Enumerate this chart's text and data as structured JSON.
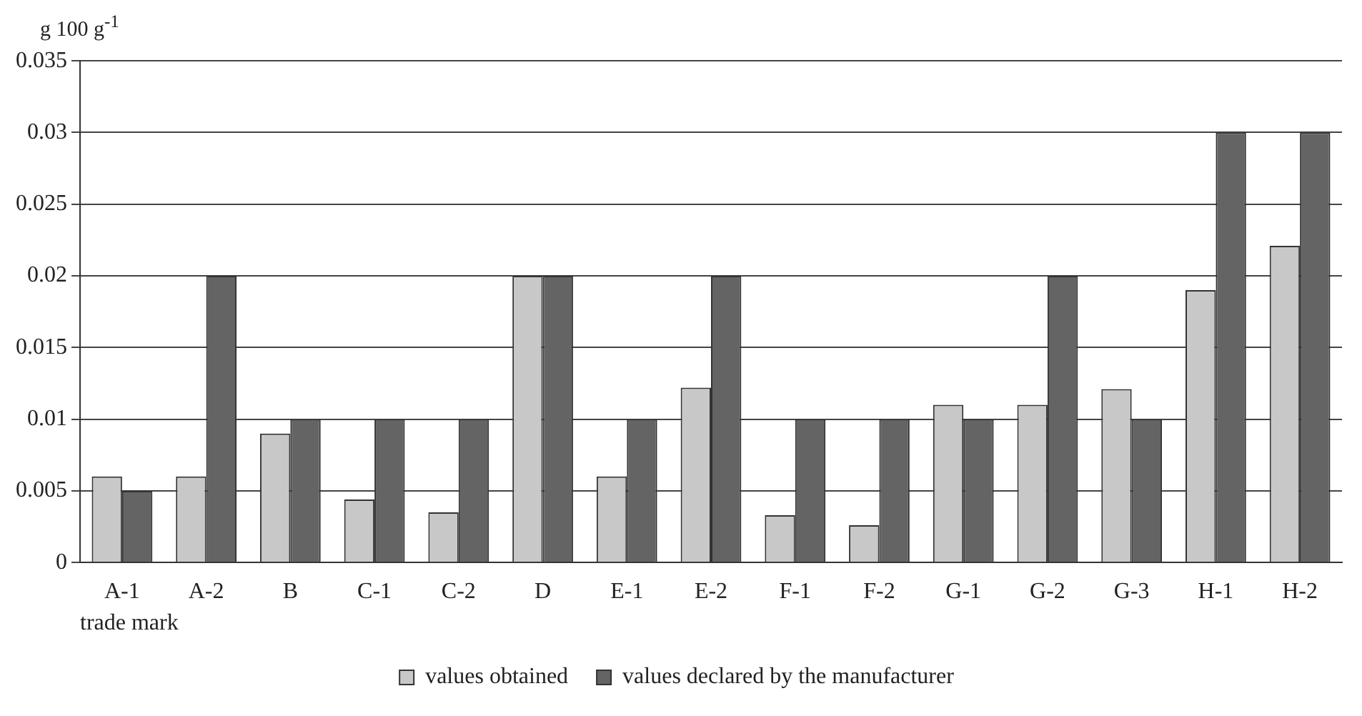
{
  "chart_data": {
    "type": "bar",
    "ylabel": "g 100 g$^{-1}$",
    "xlabel": "trade mark",
    "categories": [
      "A-1",
      "A-2",
      "B",
      "C-1",
      "C-2",
      "D",
      "E-1",
      "E-2",
      "F-1",
      "F-2",
      "G-1",
      "G-2",
      "G-3",
      "H-1",
      "H-2"
    ],
    "series": [
      {
        "name": "values obtained",
        "color": "#c8c8c8",
        "values": [
          0.006,
          0.006,
          0.009,
          0.0044,
          0.0035,
          0.02,
          0.006,
          0.0122,
          0.0033,
          0.0026,
          0.011,
          0.011,
          0.0121,
          0.019,
          0.0221
        ]
      },
      {
        "name": "values declared by the manufacturer",
        "color": "#646464",
        "values": [
          0.005,
          0.02,
          0.01,
          0.01,
          0.01,
          0.02,
          0.01,
          0.02,
          0.01,
          0.01,
          0.01,
          0.02,
          0.01,
          0.03,
          0.03
        ]
      }
    ],
    "ylim": [
      0,
      0.035
    ],
    "yticks": [
      0,
      0.005,
      0.01,
      0.015,
      0.02,
      0.025,
      0.03,
      0.035
    ],
    "grid": "y",
    "legend": "bottom"
  }
}
